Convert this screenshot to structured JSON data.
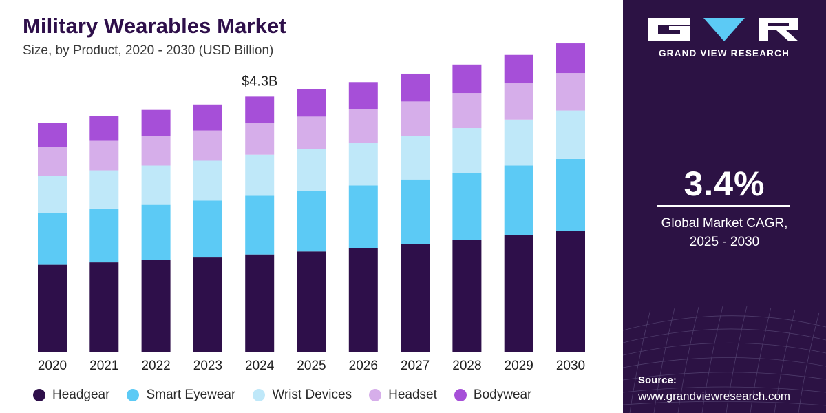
{
  "header": {
    "title": "Military Wearables Market",
    "subtitle": "Size, by Product, 2020 - 2030 (USD Billion)"
  },
  "chart_data": {
    "type": "bar",
    "stacked": true,
    "title": "Military Wearables Market",
    "subtitle": "Size, by Product, 2020 - 2030 (USD Billion)",
    "xlabel": "",
    "ylabel": "USD Billion",
    "ylim": [
      0,
      5.6
    ],
    "grid": false,
    "legend_position": "bottom",
    "categories": [
      "2020",
      "2021",
      "2022",
      "2023",
      "2024",
      "2025",
      "2026",
      "2027",
      "2028",
      "2029",
      "2030"
    ],
    "series": [
      {
        "name": "Headgear",
        "color": "#2e0f4a",
        "values": [
          1.45,
          1.49,
          1.53,
          1.57,
          1.62,
          1.67,
          1.73,
          1.79,
          1.86,
          1.94,
          2.01
        ]
      },
      {
        "name": "Smart Eyewear",
        "color": "#5ccaf5",
        "values": [
          0.86,
          0.89,
          0.91,
          0.94,
          0.97,
          1.0,
          1.03,
          1.07,
          1.11,
          1.15,
          1.19
        ]
      },
      {
        "name": "Wrist Devices",
        "color": "#bfe8f9",
        "values": [
          0.61,
          0.63,
          0.65,
          0.66,
          0.68,
          0.69,
          0.7,
          0.72,
          0.74,
          0.76,
          0.8
        ]
      },
      {
        "name": "Headset",
        "color": "#d6aeea",
        "values": [
          0.48,
          0.49,
          0.49,
          0.5,
          0.52,
          0.54,
          0.56,
          0.57,
          0.58,
          0.6,
          0.62
        ]
      },
      {
        "name": "Bodywear",
        "color": "#a64fd8",
        "values": [
          0.4,
          0.41,
          0.43,
          0.43,
          0.44,
          0.45,
          0.45,
          0.46,
          0.47,
          0.47,
          0.49
        ]
      }
    ],
    "annotations": [
      {
        "category": "2024",
        "text": "$4.3B"
      }
    ]
  },
  "sidebar": {
    "brand": "GRAND VIEW RESEARCH",
    "cagr_value": "3.4%",
    "cagr_label_line1": "Global Market CAGR,",
    "cagr_label_line2": "2025 - 2030",
    "source_label": "Source:",
    "source_url": "www.grandviewresearch.com"
  }
}
